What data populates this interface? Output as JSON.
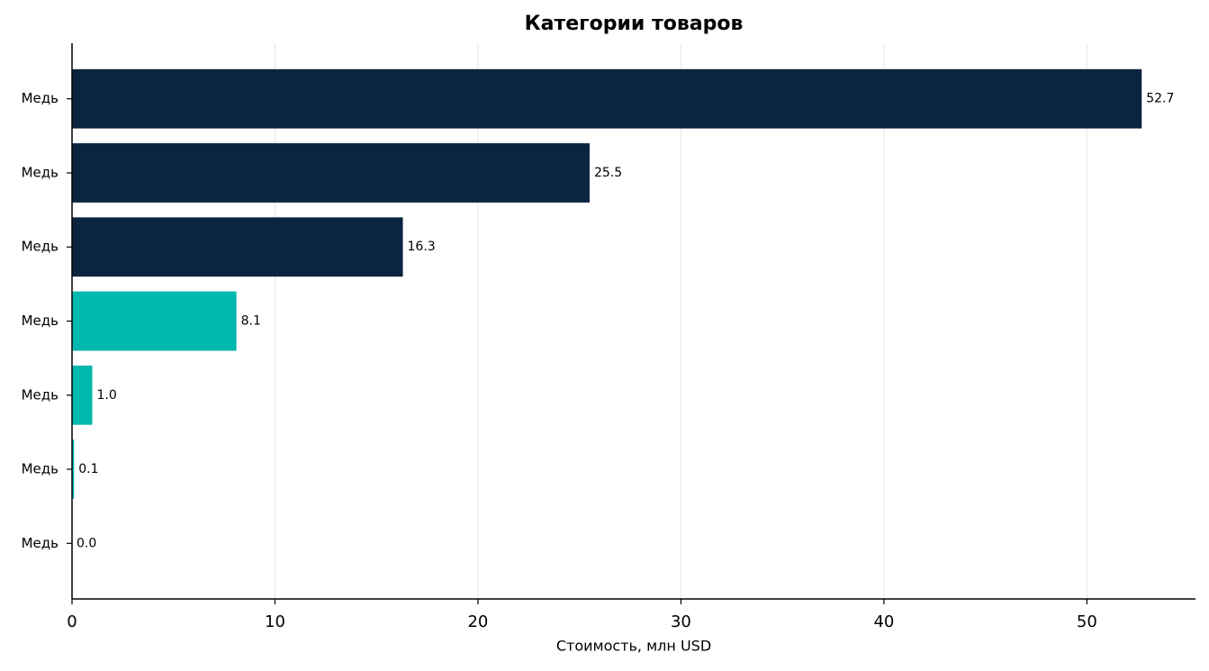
{
  "chart_data": {
    "type": "barh",
    "title": "Категории товаров",
    "xlabel": "Стоимость, млн USD",
    "categories": [
      "Медь",
      "Медь",
      "Медь",
      "Медь",
      "Медь",
      "Медь",
      "Медь"
    ],
    "values": [
      52.7,
      25.5,
      16.3,
      8.1,
      1.0,
      0.1,
      0.0
    ],
    "value_labels": [
      "52.7",
      "25.5",
      "16.3",
      "8.1",
      "1.0",
      "0.1",
      "0.0"
    ],
    "colors": [
      "#0b2540",
      "#0b2540",
      "#0b2540",
      "#00b8ad",
      "#00b8ad",
      "#00b8ad",
      "#00b8ad"
    ],
    "xlim": [
      0,
      55.35
    ],
    "xticks": [
      0,
      10,
      20,
      30,
      40,
      50
    ],
    "grid": true
  }
}
